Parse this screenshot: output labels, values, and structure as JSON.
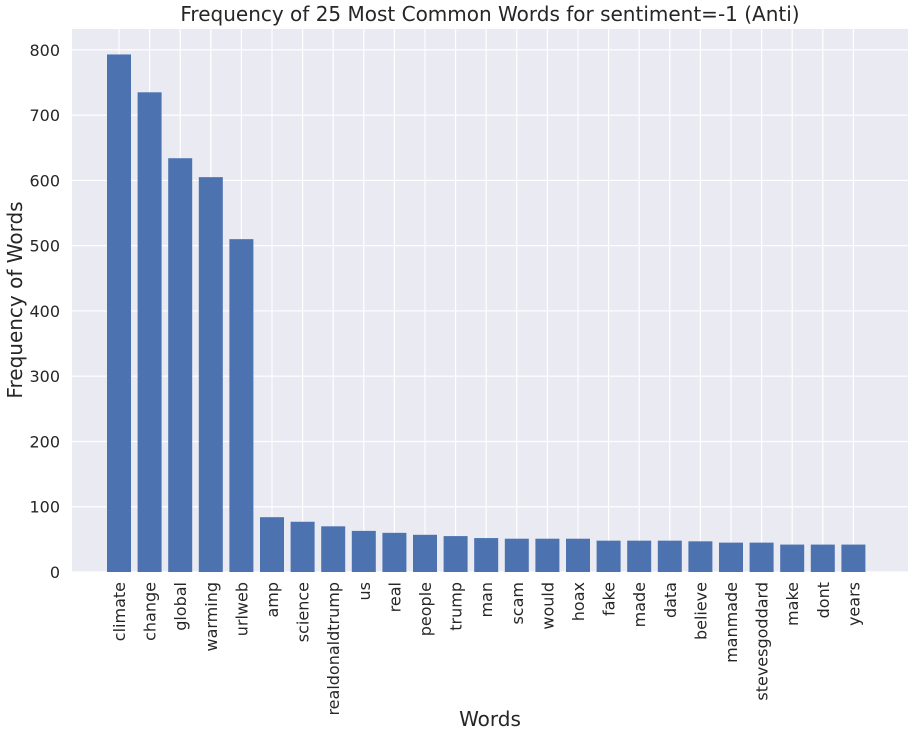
{
  "chart_data": {
    "type": "bar",
    "title": "Frequency of 25 Most Common Words for sentiment=-1 (Anti)",
    "xlabel": "Words",
    "ylabel": "Frequency of Words",
    "categories": [
      "climate",
      "change",
      "global",
      "warming",
      "urlweb",
      "amp",
      "science",
      "realdonaldtrump",
      "us",
      "real",
      "people",
      "trump",
      "man",
      "scam",
      "would",
      "hoax",
      "fake",
      "made",
      "data",
      "believe",
      "manmade",
      "stevesgoddard",
      "make",
      "dont",
      "years"
    ],
    "values": [
      793,
      735,
      634,
      605,
      510,
      84,
      77,
      70,
      63,
      60,
      57,
      55,
      52,
      51,
      51,
      51,
      48,
      48,
      48,
      47,
      45,
      45,
      42,
      42,
      42
    ],
    "ylim": [
      0,
      832
    ],
    "yticks": [
      0,
      100,
      200,
      300,
      400,
      500,
      600,
      700,
      800
    ],
    "grid": true,
    "bar_color": "#4c72b0",
    "background_color": "#eaeaf2",
    "grid_color": "#ffffff"
  }
}
